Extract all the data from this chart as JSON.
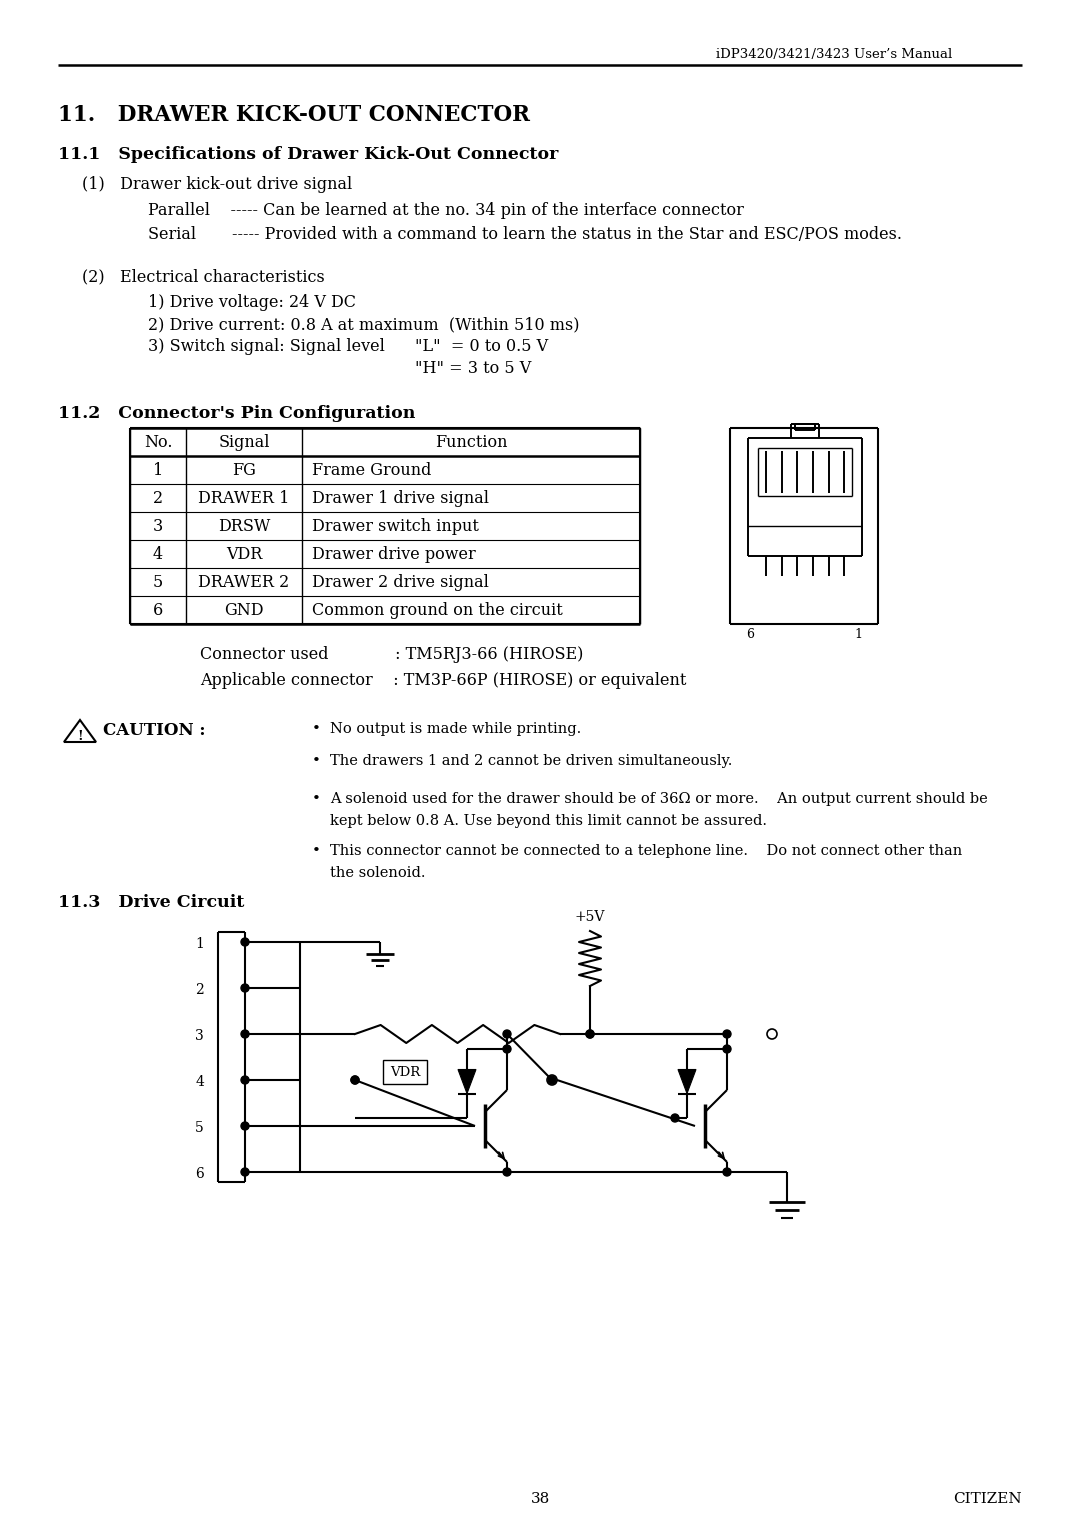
{
  "header": "iDP3420/3421/3423 User’s Manual",
  "title": "11.   DRAWER KICK-OUT CONNECTOR",
  "s11_1": "11.1   Specifications of Drawer Kick-Out Connector",
  "p1_head": "(1)   Drawer kick-out drive signal",
  "parallel": "Parallel    ----- Can be learned at the no. 34 pin of the interface connector",
  "serial": "Serial       ----- Provided with a command to learn the status in the Star and ESC/POS modes.",
  "p2_head": "(2)   Electrical characteristics",
  "elec1": "1) Drive voltage: 24 V DC",
  "elec2": "2) Drive current: 0.8 A at maximum  (Within 510 ms)",
  "elec3a": "3) Switch signal: Signal level",
  "elec3b": "\"L\"  = 0 to 0.5 V",
  "elec3c": "\"H\" = 3 to 5 V",
  "s11_2": "11.2   Connector's Pin Configuration",
  "tbl_hdr": [
    "No.",
    "Signal",
    "Function"
  ],
  "tbl_rows": [
    [
      "1",
      "FG",
      "Frame Ground"
    ],
    [
      "2",
      "DRAWER 1",
      "Drawer 1 drive signal"
    ],
    [
      "3",
      "DRSW",
      "Drawer switch input"
    ],
    [
      "4",
      "VDR",
      "Drawer drive power"
    ],
    [
      "5",
      "DRAWER 2",
      "Drawer 2 drive signal"
    ],
    [
      "6",
      "GND",
      "Common ground on the circuit"
    ]
  ],
  "conn_used": "Connector used             : TM5RJ3-66 (HIROSE)",
  "app_conn": "Applicable connector    : TM3P-66P (HIROSE) or equivalent",
  "caution_label": "CAUTION :",
  "bullets": [
    "No output is made while printing.",
    "The drawers 1 and 2 cannot be driven simultaneously.",
    "A solenoid used for the drawer should be of 36Ω or more.    An output current should be",
    "kept below 0.8 A. Use beyond this limit cannot be assured.",
    "This connector cannot be connected to a telephone line.    Do not connect other than",
    "the solenoid."
  ],
  "s11_3": "11.3   Drive Circuit",
  "footer_page": "38",
  "footer_right": "CITIZEN"
}
